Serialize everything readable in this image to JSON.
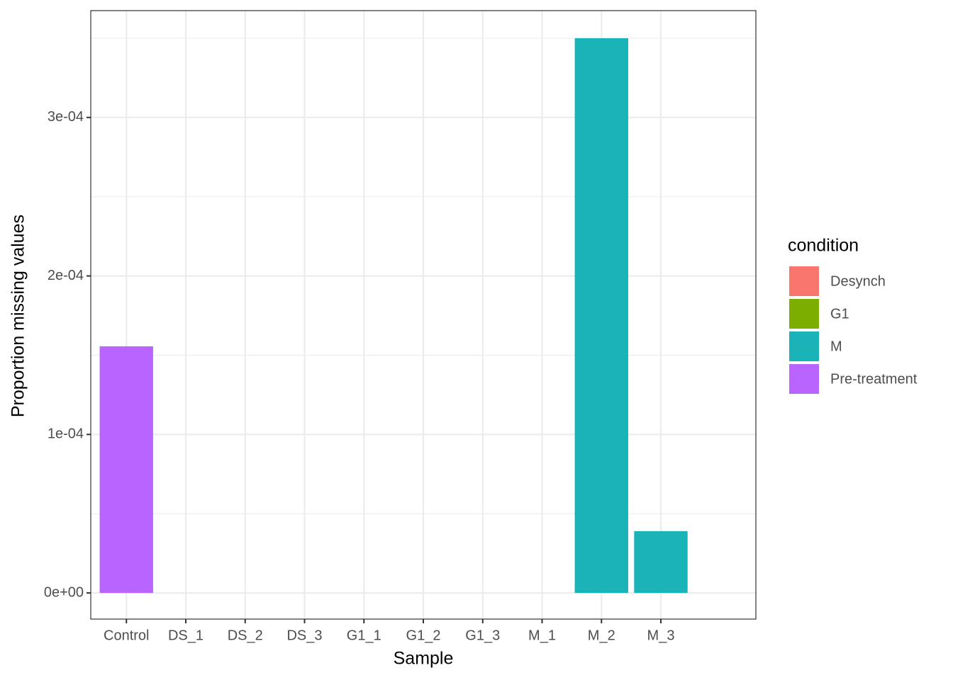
{
  "chart_data": {
    "type": "bar",
    "x_label": "Sample",
    "y_label": "Proportion missing values",
    "categories": [
      "Control",
      "DS_1",
      "DS_2",
      "DS_3",
      "G1_1",
      "G1_2",
      "G1_3",
      "M_1",
      "M_2",
      "M_3"
    ],
    "legend_title": "condition",
    "series": [
      {
        "name": "Desynch",
        "color": "#f8766d",
        "values": [
          null,
          0,
          0,
          0,
          null,
          null,
          null,
          null,
          null,
          null
        ]
      },
      {
        "name": "G1",
        "color": "#7cae00",
        "values": [
          null,
          null,
          null,
          null,
          0,
          0,
          0,
          null,
          null,
          null
        ]
      },
      {
        "name": "M",
        "color": "#1ab3b7",
        "values": [
          null,
          null,
          null,
          null,
          null,
          null,
          null,
          0,
          0.00035,
          3.9e-05
        ]
      },
      {
        "name": "Pre-treatment",
        "color": "#b964ff",
        "values": [
          0.0001556,
          null,
          null,
          null,
          null,
          null,
          null,
          null,
          null,
          null
        ]
      }
    ],
    "ylim": [
      -1.65e-05,
      0.0003674
    ],
    "yticks": [
      {
        "value": 0,
        "label": "0e+00"
      },
      {
        "value": 0.0001,
        "label": "1e-04"
      },
      {
        "value": 0.0002,
        "label": "2e-04"
      },
      {
        "value": 0.0003,
        "label": "3e-04"
      }
    ],
    "y_minor_ticks": [
      5e-05,
      0.00015,
      0.00025,
      0.00035
    ],
    "grid": true,
    "legend_position": "right"
  }
}
